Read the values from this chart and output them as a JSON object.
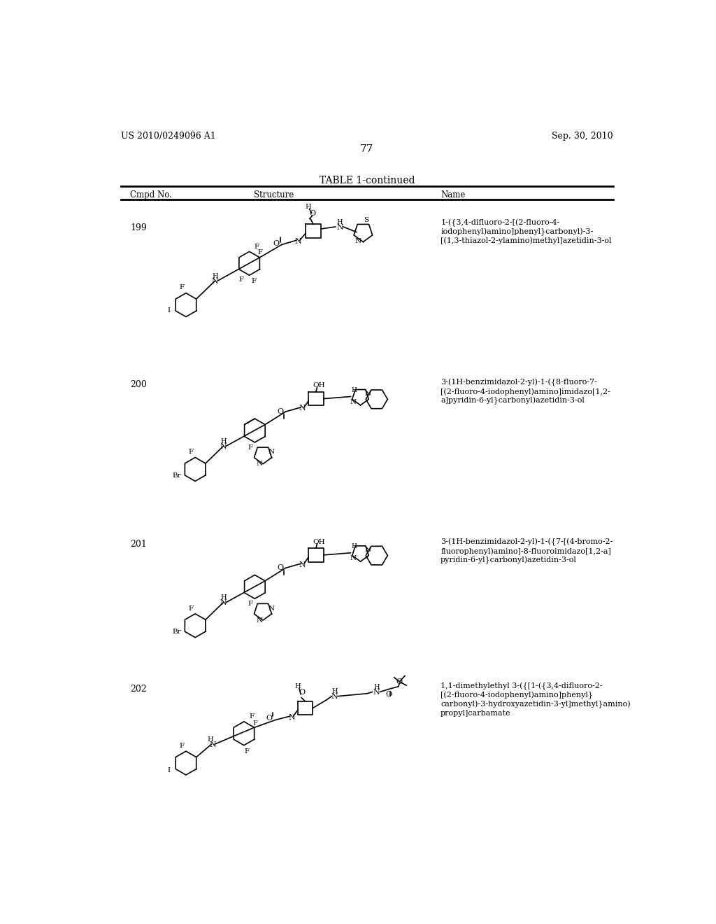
{
  "background_color": "#ffffff",
  "header_left": "US 2010/0249096 A1",
  "header_right": "Sep. 30, 2010",
  "page_number": "77",
  "table_title": "TABLE 1-continued",
  "col_headers": [
    "Cmpd No.",
    "Structure",
    "Name"
  ],
  "compounds": [
    {
      "number": "199",
      "name": "1-({3,4-difluoro-2-[(2-fluoro-4-\niodophenyl)amino]phenyl}carbonyl)-3-\n[(1,3-thiazol-2-ylamino)methyl]azetidin-3-ol"
    },
    {
      "number": "200",
      "name": "3-(1H-benzimidazol-2-yl)-1-({8-fluoro-7-\n[(2-fluoro-4-iodophenyl)amino]imidazo[1,2-\na]pyridin-6-yl}carbonyl)azetidin-3-ol"
    },
    {
      "number": "201",
      "name": "3-(1H-benzimidazol-2-yl)-1-({7-[(4-bromo-2-\nfluorophenyl)amino]-8-fluoroimidazo[1,2-a]\npyridin-6-yl}carbonyl)azetidin-3-ol"
    },
    {
      "number": "202",
      "name": "1,1-dimethylethyl 3-({[1-({3,4-difluoro-2-\n[(2-fluoro-4-iodophenyl)amino]phenyl}\ncarbonyl)-3-hydroxyazetidin-3-yl]methyl}amino)\npropyl]carbamate"
    }
  ]
}
